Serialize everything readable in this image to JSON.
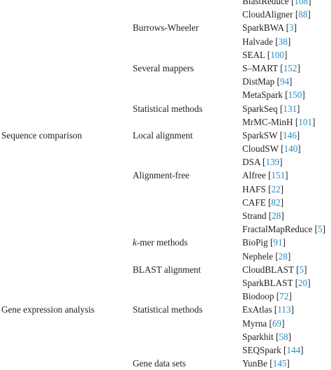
{
  "rows": [
    {
      "category": "",
      "method": "",
      "tool": "BlastReduce",
      "ref": "108"
    },
    {
      "category": "",
      "method": "",
      "tool": "CloudAligner",
      "ref": "88"
    },
    {
      "category": "",
      "method": "Burrows-Wheeler",
      "tool": "SparkBWA",
      "ref": "3"
    },
    {
      "category": "",
      "method": "",
      "tool": "Halvade",
      "ref": "38"
    },
    {
      "category": "",
      "method": "",
      "tool": "SEAL",
      "ref": "100"
    },
    {
      "category": "",
      "method": "Several mappers",
      "tool": "S–MART",
      "ref": "152"
    },
    {
      "category": "",
      "method": "",
      "tool": "DistMap",
      "ref": "94"
    },
    {
      "category": "",
      "method": "",
      "tool": "MetaSpark",
      "ref": "150"
    },
    {
      "category": "",
      "method": "Statistical methods",
      "tool": "SparkSeq",
      "ref": "131"
    },
    {
      "category": "",
      "method": "",
      "tool": "MrMC-MinH",
      "ref": "101"
    },
    {
      "category": "Sequence comparison",
      "method": "Local alignment",
      "tool": "SparkSW",
      "ref": "146"
    },
    {
      "category": "",
      "method": "",
      "tool": "CloudSW",
      "ref": "140"
    },
    {
      "category": "",
      "method": "",
      "tool": "DSA",
      "ref": "139"
    },
    {
      "category": "",
      "method": "Alignment-free",
      "tool": "Alfree",
      "ref": "151"
    },
    {
      "category": "",
      "method": "",
      "tool": "HAFS",
      "ref": "22"
    },
    {
      "category": "",
      "method": "",
      "tool": "CAFE",
      "ref": "82"
    },
    {
      "category": "",
      "method": "",
      "tool": "Strand",
      "ref": "28"
    },
    {
      "category": "",
      "method": "",
      "tool": "FractalMapReduce",
      "ref": "5"
    },
    {
      "category": "",
      "method": "k-mer methods",
      "method_italic_prefix": "k",
      "method_rest": "-mer methods",
      "tool": "BioPig",
      "ref": "91"
    },
    {
      "category": "",
      "method": "",
      "tool": "Nephele",
      "ref": "28"
    },
    {
      "category": "",
      "method": "BLAST alignment",
      "tool": "CloudBLAST",
      "ref": "5"
    },
    {
      "category": "",
      "method": "",
      "tool": "SparkBLAST",
      "ref": "20"
    },
    {
      "category": "",
      "method": "",
      "tool": "Biodoop",
      "ref": "72"
    },
    {
      "category": "Gene expression analysis",
      "method": "Statistical methods",
      "tool": "ExAtlas",
      "ref": "113"
    },
    {
      "category": "",
      "method": "",
      "tool": "Myrna",
      "ref": "69"
    },
    {
      "category": "",
      "method": "",
      "tool": "Sparkhit",
      "ref": "58"
    },
    {
      "category": "",
      "method": "",
      "tool": "SEQSpark",
      "ref": "144"
    },
    {
      "category": "",
      "method": "Gene data sets",
      "tool": "YunBe",
      "ref": "145"
    }
  ]
}
